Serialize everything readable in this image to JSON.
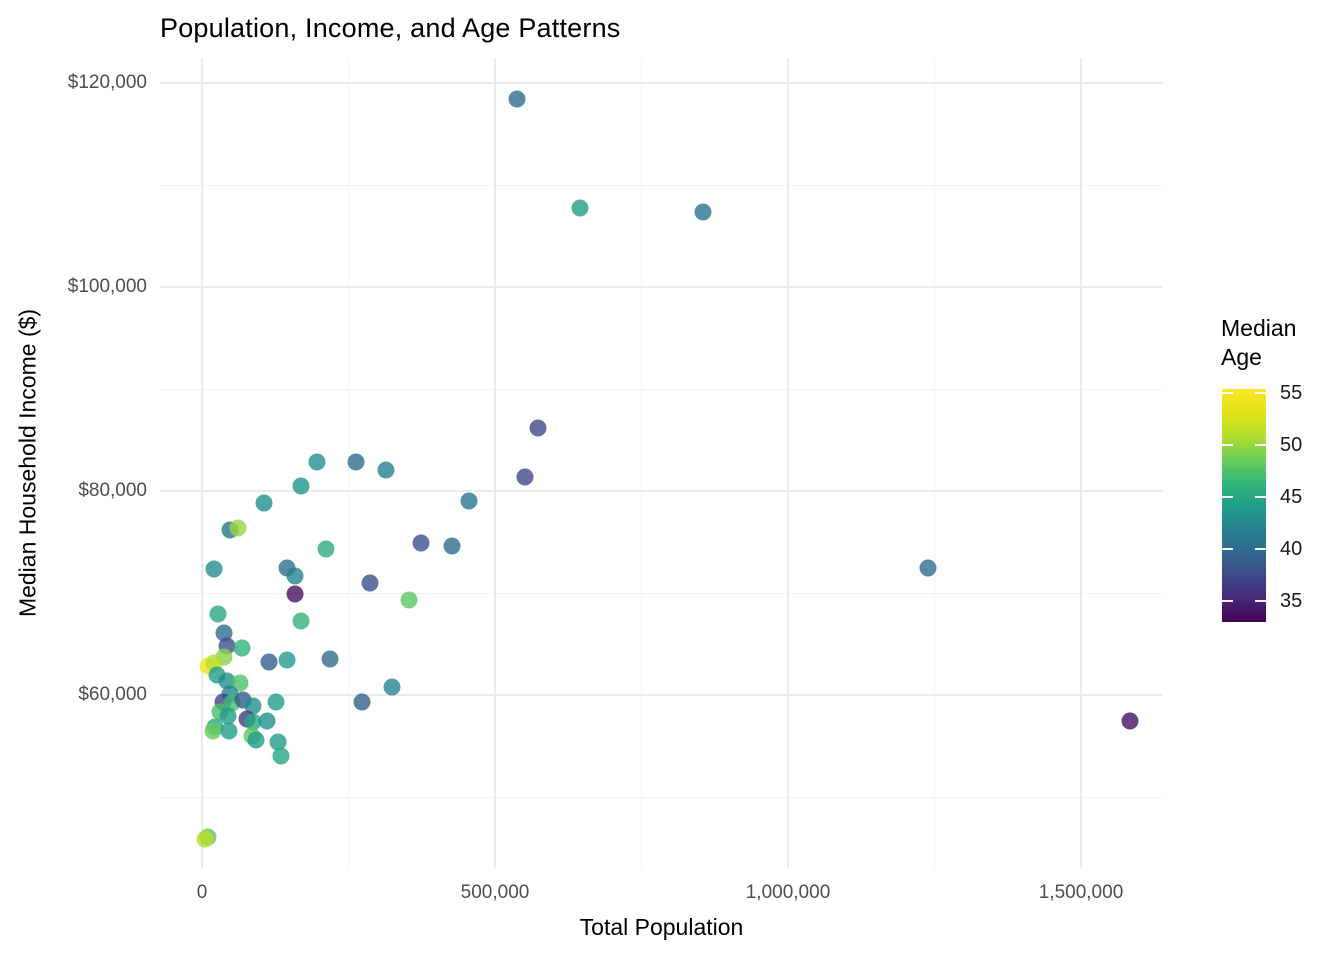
{
  "title": "Population, Income, and Age Patterns",
  "axes": {
    "x": {
      "title": "Total Population",
      "ticks": [
        {
          "value": 0,
          "label": "0"
        },
        {
          "value": 500000,
          "label": "500,000"
        },
        {
          "value": 1000000,
          "label": "1,000,000"
        },
        {
          "value": 1500000,
          "label": "1,500,000"
        }
      ],
      "minor": [
        250000,
        750000,
        1250000
      ]
    },
    "y": {
      "title": "Median Household Income ($)",
      "ticks": [
        {
          "value": 120000,
          "label": "$120,000"
        },
        {
          "value": 100000,
          "label": "$100,000"
        },
        {
          "value": 80000,
          "label": "$80,000"
        },
        {
          "value": 60000,
          "label": "$60,000"
        }
      ],
      "minor": [
        50000,
        70000,
        90000,
        110000
      ]
    }
  },
  "legend": {
    "title_lines": [
      "Median",
      "Age"
    ],
    "ticks": [
      {
        "value": 55,
        "label": "55"
      },
      {
        "value": 50,
        "label": "50"
      },
      {
        "value": 45,
        "label": "45"
      },
      {
        "value": 40,
        "label": "40"
      },
      {
        "value": 35,
        "label": "35"
      }
    ]
  },
  "chart_data": {
    "type": "scatter",
    "title": "Population, Income, and Age Patterns",
    "xlabel": "Total Population",
    "ylabel": "Median Household Income ($)",
    "color_label": "Median Age",
    "xlim": [
      -70000,
      1640000
    ],
    "ylim": [
      43000,
      122500
    ],
    "grid": true,
    "legend_position": "right",
    "color_domain": [
      33,
      55.4
    ],
    "point_alpha": 0.8,
    "colormap": {
      "name": "viridis",
      "stops": [
        "#440154",
        "#482878",
        "#3e4a89",
        "#31688e",
        "#26828e",
        "#1f9e89",
        "#35b779",
        "#6dcd59",
        "#b4de2c",
        "#dfe318",
        "#fde725"
      ]
    },
    "points": [
      {
        "pop": 537000,
        "income": 118400,
        "age": 40
      },
      {
        "pop": 645000,
        "income": 107700,
        "age": 44
      },
      {
        "pop": 855000,
        "income": 107400,
        "age": 40.5
      },
      {
        "pop": 574000,
        "income": 86200,
        "age": 37.5
      },
      {
        "pop": 551000,
        "income": 81400,
        "age": 37.5
      },
      {
        "pop": 196500,
        "income": 82800,
        "age": 43
      },
      {
        "pop": 263000,
        "income": 82800,
        "age": 40
      },
      {
        "pop": 314000,
        "income": 82100,
        "age": 42
      },
      {
        "pop": 169000,
        "income": 80500,
        "age": 43.5
      },
      {
        "pop": 106000,
        "income": 78800,
        "age": 43
      },
      {
        "pop": 455700,
        "income": 79000,
        "age": 41
      },
      {
        "pop": 47800,
        "income": 76200,
        "age": 41
      },
      {
        "pop": 61400,
        "income": 76400,
        "age": 50
      },
      {
        "pop": 211600,
        "income": 74300,
        "age": 45.5
      },
      {
        "pop": 373700,
        "income": 74900,
        "age": 38
      },
      {
        "pop": 426600,
        "income": 74600,
        "age": 40
      },
      {
        "pop": 1239000,
        "income": 72500,
        "age": 40
      },
      {
        "pop": 20500,
        "income": 72400,
        "age": 43
      },
      {
        "pop": 145000,
        "income": 72500,
        "age": 40
      },
      {
        "pop": 158700,
        "income": 71700,
        "age": 42
      },
      {
        "pop": 286700,
        "income": 71000,
        "age": 38
      },
      {
        "pop": 158700,
        "income": 69900,
        "age": 34
      },
      {
        "pop": 353200,
        "income": 69300,
        "age": 48
      },
      {
        "pop": 27300,
        "income": 67900,
        "age": 45
      },
      {
        "pop": 169000,
        "income": 67300,
        "age": 46
      },
      {
        "pop": 37500,
        "income": 66100,
        "age": 40
      },
      {
        "pop": 42700,
        "income": 64800,
        "age": 38
      },
      {
        "pop": 68300,
        "income": 64600,
        "age": 46
      },
      {
        "pop": 37500,
        "income": 63700,
        "age": 49.5
      },
      {
        "pop": 10200,
        "income": 62800,
        "age": 54.5
      },
      {
        "pop": 20500,
        "income": 63100,
        "age": 51
      },
      {
        "pop": 114300,
        "income": 63200,
        "age": 39
      },
      {
        "pop": 145000,
        "income": 63400,
        "age": 44
      },
      {
        "pop": 218400,
        "income": 63500,
        "age": 40
      },
      {
        "pop": 25600,
        "income": 62000,
        "age": 44
      },
      {
        "pop": 42700,
        "income": 61400,
        "age": 43
      },
      {
        "pop": 64900,
        "income": 61200,
        "age": 47.5
      },
      {
        "pop": 324200,
        "income": 60800,
        "age": 42
      },
      {
        "pop": 47800,
        "income": 60100,
        "age": 42
      },
      {
        "pop": 35800,
        "income": 59300,
        "age": 37
      },
      {
        "pop": 51200,
        "income": 59200,
        "age": 47
      },
      {
        "pop": 70000,
        "income": 59500,
        "age": 39
      },
      {
        "pop": 126300,
        "income": 59300,
        "age": 44
      },
      {
        "pop": 273000,
        "income": 59300,
        "age": 39
      },
      {
        "pop": 87000,
        "income": 58900,
        "age": 43
      },
      {
        "pop": 30700,
        "income": 58300,
        "age": 47
      },
      {
        "pop": 44400,
        "income": 57900,
        "age": 44
      },
      {
        "pop": 76800,
        "income": 57600,
        "age": 36.5
      },
      {
        "pop": 87000,
        "income": 57400,
        "age": 45
      },
      {
        "pop": 110900,
        "income": 57500,
        "age": 43
      },
      {
        "pop": 22200,
        "income": 56900,
        "age": 45
      },
      {
        "pop": 18800,
        "income": 56500,
        "age": 48.5
      },
      {
        "pop": 46100,
        "income": 56500,
        "age": 44
      },
      {
        "pop": 85300,
        "income": 56000,
        "age": 48
      },
      {
        "pop": 92200,
        "income": 55600,
        "age": 44
      },
      {
        "pop": 129700,
        "income": 55400,
        "age": 44
      },
      {
        "pop": 134800,
        "income": 54000,
        "age": 45
      },
      {
        "pop": 1583600,
        "income": 57500,
        "age": 34
      },
      {
        "pop": 10200,
        "income": 46100,
        "age": 48
      },
      {
        "pop": 5000,
        "income": 45900,
        "age": 51
      }
    ]
  },
  "style_colors": {
    "axis_text": "#4d4d4d",
    "grid_major": "#ebebeb",
    "grid_minor": "#f3f3f3",
    "background": "#ffffff"
  }
}
